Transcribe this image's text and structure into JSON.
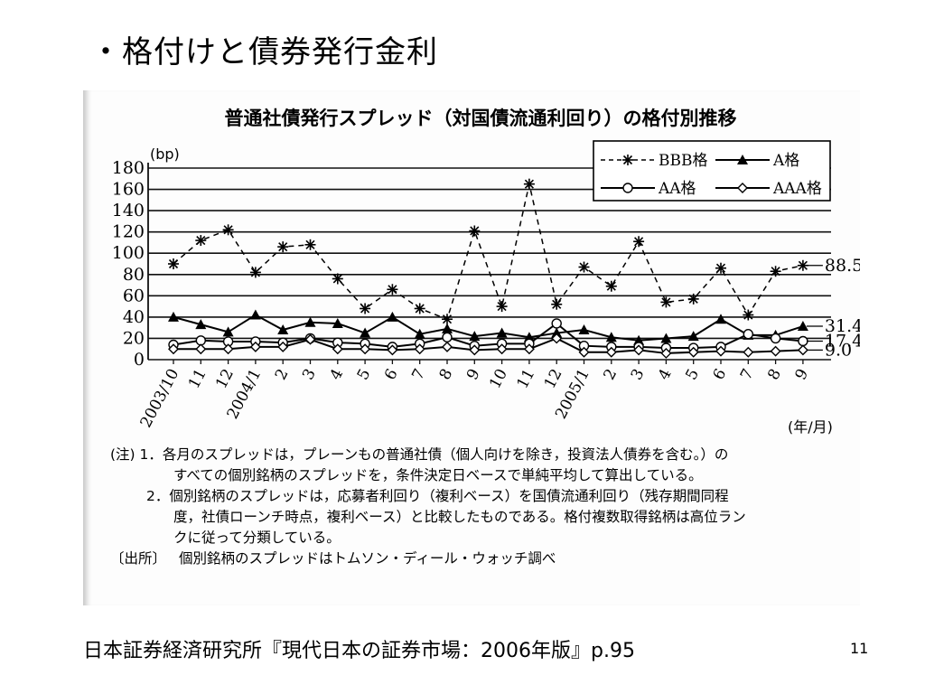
{
  "slide": {
    "title": "・格付けと債券発行金利",
    "source": "日本証券経済研究所『現代日本の証券市場：2006年版』p.95",
    "page_number": "11"
  },
  "chart_data": {
    "type": "line",
    "title": "普通社債発行スプレッド（対国債流通利回り）の格付別推移",
    "ylabel": "(bp)",
    "xlabel": "(年/月)",
    "ylim": [
      0,
      180
    ],
    "yticks": [
      0,
      20,
      40,
      60,
      80,
      100,
      120,
      140,
      160,
      180
    ],
    "grid": true,
    "legend_position": "top-right",
    "categories": [
      "2003/10",
      "11",
      "12",
      "2004/1",
      "2",
      "3",
      "4",
      "5",
      "6",
      "7",
      "8",
      "9",
      "10",
      "11",
      "12",
      "2005/1",
      "2",
      "3",
      "4",
      "5",
      "6",
      "7",
      "8",
      "9"
    ],
    "series": [
      {
        "name": "BBB格",
        "marker": "asterisk",
        "dash": "dashed",
        "values": [
          90,
          112,
          122,
          82,
          106,
          108,
          76,
          48,
          66,
          48,
          38,
          121,
          50,
          165,
          52,
          87,
          69,
          111,
          54,
          57,
          86,
          42,
          83,
          88.5
        ],
        "end_label": "88.5"
      },
      {
        "name": "A格",
        "marker": "triangle",
        "dash": "solid",
        "values": [
          40,
          33,
          26,
          42,
          28,
          35,
          34,
          25,
          40,
          24,
          29,
          22,
          25,
          21,
          25,
          28,
          21,
          18,
          20,
          22,
          38,
          23,
          23,
          31.4
        ],
        "end_label": "31.4"
      },
      {
        "name": "AA格",
        "marker": "circle",
        "dash": "solid",
        "values": [
          14,
          18,
          17,
          17,
          16,
          20,
          16,
          15,
          12,
          15,
          21,
          13,
          15,
          15,
          34,
          13,
          12,
          12,
          11,
          11,
          12,
          24,
          20,
          17.4
        ],
        "end_label": "17.4"
      },
      {
        "name": "AAA格",
        "marker": "diamond",
        "dash": "solid",
        "values": [
          10,
          10,
          10,
          12,
          12,
          19,
          10,
          10,
          9,
          10,
          12,
          9,
          10,
          10,
          20,
          7,
          7,
          9,
          6,
          7,
          8,
          7,
          8,
          9.0
        ],
        "end_label": "9.0"
      }
    ],
    "notes": {
      "lead": "(注) 1．",
      "note1_a": "各月のスプレッドは，プレーンもの普通社債（個人向けを除き，投資法人債券を含む。）の",
      "note1_b": "すべての個別銘柄のスプレッドを，条件決定日ベースで単純平均して算出している。",
      "lead2": "2．",
      "note2_a": "個別銘柄のスプレッドは，応募者利回り（複利ベース）を国債流通利回り（残存期間同程",
      "note2_b": "度，社債ローンチ時点，複利ベース）と比較したものである。格付複数取得銘柄は高位ラン",
      "note2_c": "クに従って分類している。",
      "source_lead": "〔出所〕",
      "source_text": "個別銘柄のスプレッドはトムソン・ディール・ウォッチ調べ"
    }
  }
}
